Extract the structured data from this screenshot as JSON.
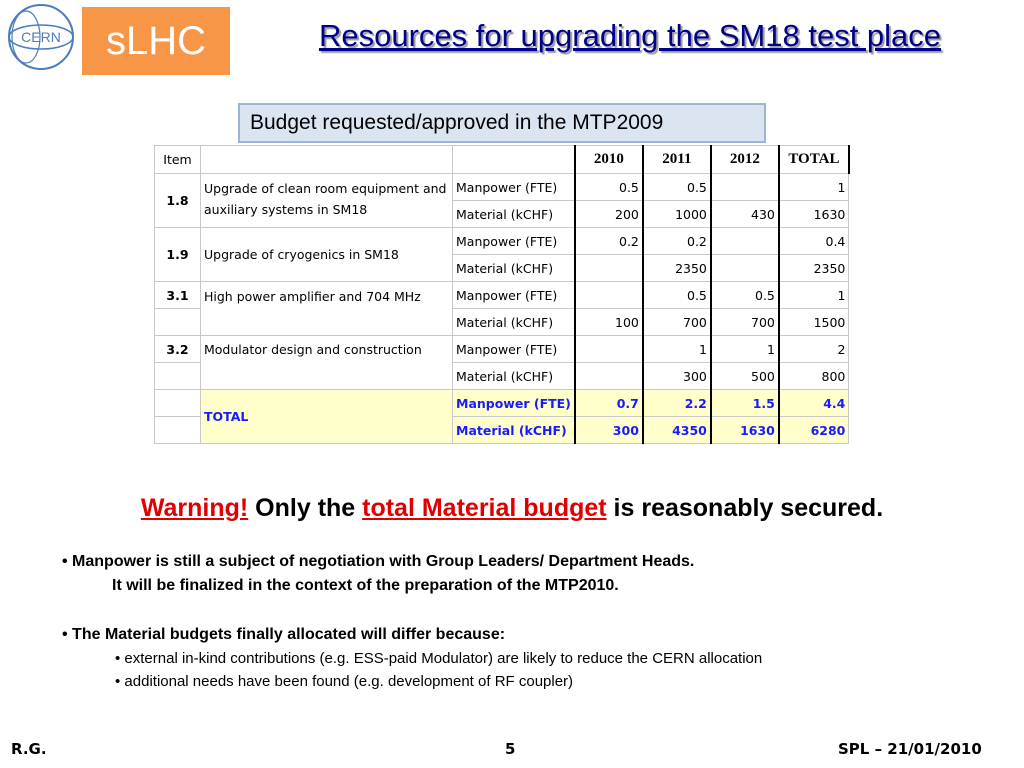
{
  "logos": {
    "cern_text": "CERN",
    "slhc_text": "sLHC",
    "slhc_color": "#f79646"
  },
  "title": "Resources for upgrading the SM18 test place",
  "budget_label": "Budget requested/approved in the MTP2009",
  "table": {
    "headers": {
      "item": "Item",
      "y2010": "2010",
      "y2011": "2011",
      "y2012": "2012",
      "total": "TOTAL"
    },
    "rows": [
      {
        "item": "1.8",
        "desc": "Upgrade of clean room equipment and auxiliary systems in SM18",
        "manpower": {
          "label": "Manpower (FTE)",
          "v2010": "0.5",
          "v2011": "0.5",
          "v2012": "",
          "total": "1"
        },
        "material": {
          "label": "Material (kCHF)",
          "v2010": "200",
          "v2011": "1000",
          "v2012": "430",
          "total": "1630"
        }
      },
      {
        "item": "1.9",
        "desc": "Upgrade of cryogenics in SM18",
        "manpower": {
          "label": "Manpower (FTE)",
          "v2010": "0.2",
          "v2011": "0.2",
          "v2012": "",
          "total": "0.4"
        },
        "material": {
          "label": "Material (kCHF)",
          "v2010": "",
          "v2011": "2350",
          "v2012": "",
          "total": "2350"
        }
      },
      {
        "item": "3.1",
        "desc": "High power amplifier and 704 MHz",
        "manpower": {
          "label": "Manpower (FTE)",
          "v2010": "",
          "v2011": "0.5",
          "v2012": "0.5",
          "total": "1"
        },
        "material": {
          "label": "Material (kCHF)",
          "v2010": "100",
          "v2011": "700",
          "v2012": "700",
          "total": "1500"
        }
      },
      {
        "item": "3.2",
        "desc": "Modulator design and construction",
        "manpower": {
          "label": "Manpower (FTE)",
          "v2010": "",
          "v2011": "1",
          "v2012": "1",
          "total": "2"
        },
        "material": {
          "label": "Material (kCHF)",
          "v2010": "",
          "v2011": "300",
          "v2012": "500",
          "total": "800"
        }
      }
    ],
    "total": {
      "label": "TOTAL",
      "manpower": {
        "label": "Manpower (FTE)",
        "v2010": "0.7",
        "v2011": "2.2",
        "v2012": "1.5",
        "total": "4.4"
      },
      "material": {
        "label": "Material (kCHF)",
        "v2010": "300",
        "v2011": "4350",
        "v2012": "1630",
        "total": "6280"
      }
    }
  },
  "warning": {
    "prefix": "Warning!",
    "text1": " Only the ",
    "highlight": "total Material budget",
    "text2": " is reasonably secured."
  },
  "bullets": {
    "b1_line1": "Manpower is still a subject of negotiation with Group Leaders/ Department Heads.",
    "b1_line2": "It will be finalized in the context of the preparation of the MTP2010.",
    "b2": "The Material budgets finally allocated will differ because:",
    "b3": "external in-kind contributions (e.g. ESS-paid Modulator) are likely to reduce the CERN allocation",
    "b4": "additional needs have been found (e.g. development of RF coupler)"
  },
  "footer": {
    "left": "R.G.",
    "center": "5",
    "right": "SPL – 21/01/2010"
  }
}
